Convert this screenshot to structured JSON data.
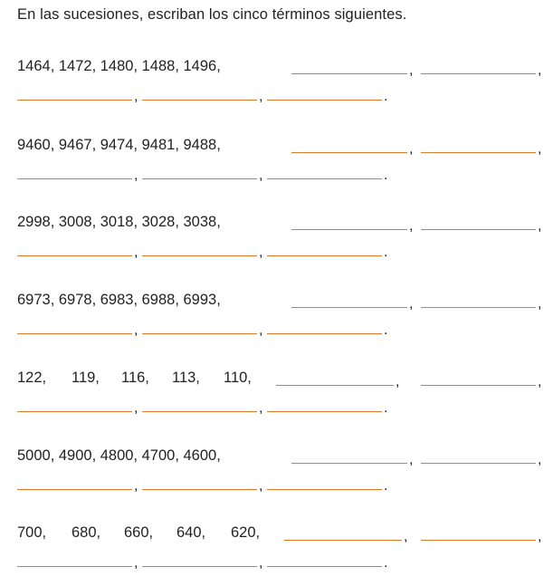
{
  "instruction": "En las sucesiones, escriban los cinco términos siguientes.",
  "accent_color": "#e07a2a",
  "problems": [
    {
      "terms": [
        "1464",
        "1472",
        "1480",
        "1488",
        "1496"
      ]
    },
    {
      "terms": [
        "9460",
        "9467",
        "9474",
        "9481",
        "9488"
      ]
    },
    {
      "terms": [
        "2998",
        "3008",
        "3018",
        "3028",
        "3038"
      ]
    },
    {
      "terms": [
        "6973",
        "6978",
        "6983",
        "6988",
        "6993"
      ]
    },
    {
      "terms": [
        "122",
        "119",
        "116",
        "113",
        "110"
      ]
    },
    {
      "terms": [
        "5000",
        "4900",
        "4800",
        "4700",
        "4600"
      ]
    },
    {
      "terms": [
        "700",
        "680",
        "660",
        "640",
        "620"
      ]
    }
  ],
  "comma": ",",
  "period": "."
}
